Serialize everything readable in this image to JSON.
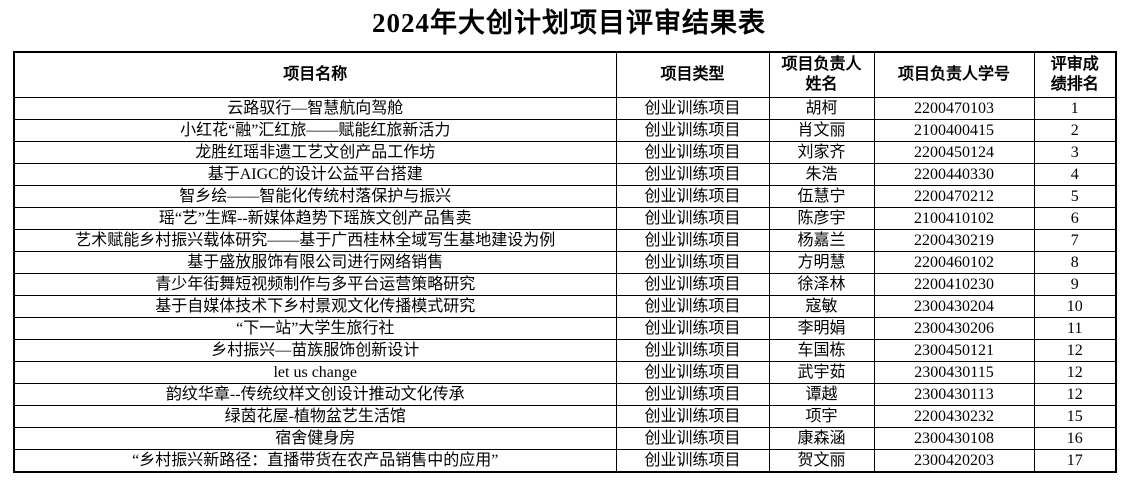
{
  "title": "2024年大创计划项目评审结果表",
  "table": {
    "headers": {
      "name": "项目名称",
      "type": "项目类型",
      "leader": "项目负责人\n姓名",
      "student_id": "项目负责人学号",
      "rank": "评审成\n绩排名"
    },
    "rows": [
      {
        "name": "云路驭行—智慧航向驾舱",
        "type": "创业训练项目",
        "leader": "胡柯",
        "student_id": "2200470103",
        "rank": "1"
      },
      {
        "name": "小红花“融”汇红旅——赋能红旅新活力",
        "type": "创业训练项目",
        "leader": "肖文丽",
        "student_id": "2100400415",
        "rank": "2"
      },
      {
        "name": "龙胜红瑶非遗工艺文创产品工作坊",
        "type": "创业训练项目",
        "leader": "刘家齐",
        "student_id": "2200450124",
        "rank": "3"
      },
      {
        "name": "基于AIGC的设计公益平台搭建",
        "type": "创业训练项目",
        "leader": "朱浩",
        "student_id": "2200440330",
        "rank": "4"
      },
      {
        "name": "智乡绘——智能化传统村落保护与振兴",
        "type": "创业训练项目",
        "leader": "伍慧宁",
        "student_id": "2200470212",
        "rank": "5"
      },
      {
        "name": "瑶“艺”生辉--新媒体趋势下瑶族文创产品售卖",
        "type": "创业训练项目",
        "leader": "陈彦宇",
        "student_id": "2100410102",
        "rank": "6"
      },
      {
        "name": "艺术赋能乡村振兴载体研究——基于广西桂林全域写生基地建设为例",
        "type": "创业训练项目",
        "leader": "杨嘉兰",
        "student_id": "2200430219",
        "rank": "7"
      },
      {
        "name": "基于盛放服饰有限公司进行网络销售",
        "type": "创业训练项目",
        "leader": "方明慧",
        "student_id": "2200460102",
        "rank": "8"
      },
      {
        "name": "青少年街舞短视频制作与多平台运营策略研究",
        "type": "创业训练项目",
        "leader": "徐泽林",
        "student_id": "2200410230",
        "rank": "9"
      },
      {
        "name": "基于自媒体技术下乡村景观文化传播模式研究",
        "type": "创业训练项目",
        "leader": "寇敏",
        "student_id": "2300430204",
        "rank": "10"
      },
      {
        "name": "“下一站”大学生旅行社",
        "type": "创业训练项目",
        "leader": "李明娟",
        "student_id": "2300430206",
        "rank": "11"
      },
      {
        "name": "乡村振兴—苗族服饰创新设计",
        "type": "创业训练项目",
        "leader": "车国栋",
        "student_id": "2300450121",
        "rank": "12"
      },
      {
        "name": "let us change",
        "type": "创业训练项目",
        "leader": "武宇茹",
        "student_id": "2300430115",
        "rank": "12"
      },
      {
        "name": "韵纹华章--传统纹样文创设计推动文化传承",
        "type": "创业训练项目",
        "leader": "谭越",
        "student_id": "2300430113",
        "rank": "12"
      },
      {
        "name": "绿茵花屋-植物盆艺生活馆",
        "type": "创业训练项目",
        "leader": "项宇",
        "student_id": "2200430232",
        "rank": "15"
      },
      {
        "name": "宿舍健身房",
        "type": "创业训练项目",
        "leader": "康森涵",
        "student_id": "2300430108",
        "rank": "16"
      },
      {
        "name": "“乡村振兴新路径：直播带货在农产品销售中的应用”",
        "type": "创业训练项目",
        "leader": "贺文丽",
        "student_id": "2300420203",
        "rank": "17"
      }
    ]
  }
}
